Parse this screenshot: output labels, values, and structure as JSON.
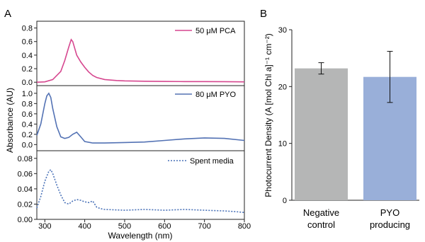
{
  "figure": {
    "panel_a_letter": "A",
    "panel_b_letter": "B"
  },
  "chart_data": [
    {
      "type": "line",
      "panel": "A",
      "xlabel": "Wavelength (nm)",
      "ylabel": "Absorbance (AU)",
      "xlim": [
        280,
        800
      ],
      "x_ticks": [
        "300",
        "400",
        "500",
        "600",
        "700",
        "800"
      ],
      "grid": false,
      "subplots": [
        {
          "ylim": [
            -0.05,
            0.9
          ],
          "y_ticks": [
            "0.0",
            "0.2",
            "0.4",
            "0.6",
            "0.8"
          ],
          "legend_position": "top-right",
          "series": [
            {
              "name": "50 μM PCA",
              "color": "#d6478f",
              "style": "solid",
              "x": [
                280,
                300,
                320,
                340,
                350,
                360,
                366,
                370,
                375,
                380,
                390,
                400,
                410,
                420,
                430,
                450,
                480,
                500,
                550,
                600,
                650,
                700,
                750,
                800
              ],
              "y": [
                0.0,
                0.005,
                0.04,
                0.16,
                0.32,
                0.52,
                0.63,
                0.6,
                0.5,
                0.4,
                0.3,
                0.22,
                0.15,
                0.1,
                0.07,
                0.04,
                0.025,
                0.02,
                0.015,
                0.012,
                0.01,
                0.01,
                0.008,
                0.005
              ]
            }
          ]
        },
        {
          "ylim": [
            -0.12,
            1.15
          ],
          "y_ticks": [
            "0.0",
            "0.2",
            "0.4",
            "0.6",
            "0.8",
            "1.0"
          ],
          "legend_position": "top-right",
          "series": [
            {
              "name": "80 μM PYO",
              "color": "#5372b4",
              "style": "solid",
              "x": [
                280,
                290,
                300,
                305,
                310,
                315,
                320,
                330,
                340,
                350,
                360,
                370,
                380,
                390,
                400,
                420,
                450,
                500,
                550,
                600,
                650,
                700,
                750,
                800
              ],
              "y": [
                0.18,
                0.4,
                0.8,
                0.95,
                1.0,
                0.92,
                0.7,
                0.35,
                0.15,
                0.12,
                0.14,
                0.2,
                0.24,
                0.15,
                0.06,
                0.03,
                0.03,
                0.04,
                0.05,
                0.08,
                0.11,
                0.13,
                0.12,
                0.08
              ]
            }
          ]
        },
        {
          "ylim": [
            0.0,
            0.09
          ],
          "y_ticks": [
            "0.00",
            "0.02",
            "0.04",
            "0.06",
            "0.08"
          ],
          "legend_position": "top-right",
          "series": [
            {
              "name": "Spent media",
              "color": "#4a72b8",
              "style": "dotted",
              "x": [
                280,
                290,
                300,
                310,
                315,
                320,
                330,
                340,
                350,
                360,
                370,
                380,
                390,
                400,
                410,
                420,
                425,
                430,
                440,
                450,
                500,
                550,
                600,
                650,
                700,
                750,
                780,
                800
              ],
              "y": [
                0.015,
                0.03,
                0.05,
                0.063,
                0.065,
                0.06,
                0.045,
                0.032,
                0.022,
                0.02,
                0.024,
                0.026,
                0.025,
                0.023,
                0.022,
                0.024,
                0.02,
                0.016,
                0.014,
                0.013,
                0.012,
                0.013,
                0.012,
                0.013,
                0.012,
                0.011,
                0.01,
                0.009
              ]
            }
          ]
        }
      ]
    },
    {
      "type": "bar",
      "panel": "B",
      "ylabel": "Photocurrent Density (A [mol Chl a]⁻¹ cm⁻²)",
      "ylim": [
        0,
        30
      ],
      "y_ticks": [
        "0",
        "10",
        "20",
        "30"
      ],
      "grid": false,
      "categories": [
        {
          "line1": "Negative",
          "line2": "control"
        },
        {
          "line1": "PYO",
          "line2": "producing"
        }
      ],
      "values": [
        23.2,
        21.7
      ],
      "errors": [
        1.0,
        4.5
      ],
      "colors": [
        "#b5b6b6",
        "#99afd9"
      ]
    }
  ]
}
